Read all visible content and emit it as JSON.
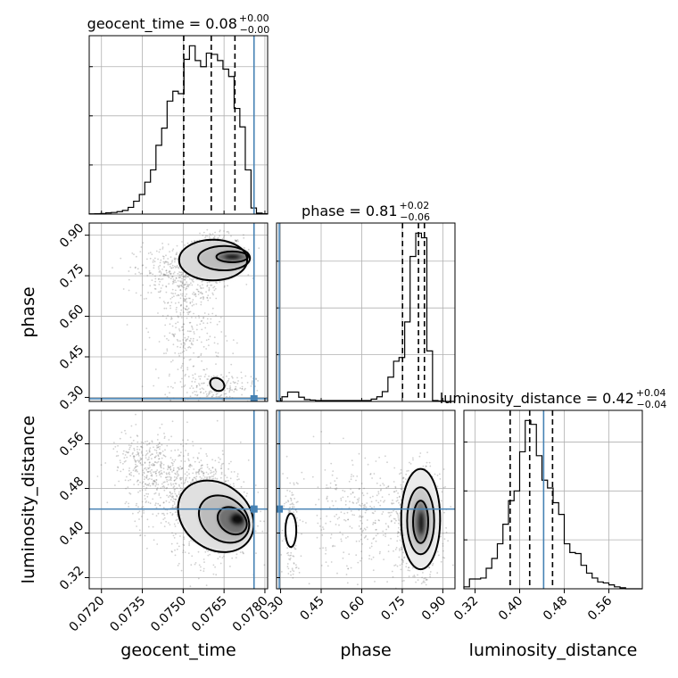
{
  "chart_data": {
    "type": "corner",
    "truth_color": "#4682b4",
    "truths": {
      "geocent_time": 0.0776,
      "phase": 0.295,
      "luminosity_distance": 0.443
    },
    "parameters": [
      {
        "name": "geocent_time",
        "axis_label": "geocent_time",
        "title": "geocent_time = 0.08",
        "title_sup": "+0.00",
        "title_sub": "−0.00",
        "range": [
          0.07155,
          0.0781
        ],
        "ticks": [
          0.072,
          0.0735,
          0.075,
          0.0765,
          0.078
        ],
        "tick_labels": [
          "0.0720",
          "0.0735",
          "0.0750",
          "0.0765",
          "0.0780"
        ],
        "quantiles": [
          0.07502,
          0.07603,
          0.0769
        ],
        "hist_edges": [
          0.07155,
          0.07175,
          0.07195,
          0.07216,
          0.07236,
          0.07257,
          0.07277,
          0.07298,
          0.07318,
          0.07339,
          0.07359,
          0.0738,
          0.074,
          0.07421,
          0.07441,
          0.07462,
          0.07482,
          0.07503,
          0.07523,
          0.07544,
          0.07564,
          0.07585,
          0.07605,
          0.07626,
          0.07646,
          0.07667,
          0.07687,
          0.07708,
          0.07728,
          0.07749,
          0.07769,
          0.0779,
          0.0781
        ],
        "hist_counts": [
          0.2,
          0.3,
          0.5,
          1.0,
          1.3,
          2.0,
          3.0,
          5.5,
          10.5,
          16.0,
          26.0,
          36.0,
          56.0,
          70.0,
          92.0,
          100.0,
          98.0,
          126.0,
          137.0,
          125.0,
          120.0,
          131.0,
          130.0,
          125.0,
          118.0,
          112.0,
          86.0,
          71.0,
          36.0,
          5.0,
          0.8,
          0.3
        ]
      },
      {
        "name": "phase",
        "axis_label": "phase",
        "title": "phase = 0.81",
        "title_sup": "+0.02",
        "title_sub": "−0.06",
        "range": [
          0.285,
          0.945
        ],
        "ticks": [
          0.3,
          0.45,
          0.6,
          0.75,
          0.9
        ],
        "tick_labels": [
          "0.30",
          "0.45",
          "0.60",
          "0.75",
          "0.90"
        ],
        "quantiles": [
          0.751,
          0.81,
          0.832
        ],
        "hist_edges": [
          0.285,
          0.305,
          0.326,
          0.347,
          0.367,
          0.388,
          0.409,
          0.429,
          0.45,
          0.47,
          0.491,
          0.512,
          0.532,
          0.553,
          0.573,
          0.594,
          0.615,
          0.635,
          0.656,
          0.676,
          0.697,
          0.718,
          0.738,
          0.759,
          0.779,
          0.8,
          0.821,
          0.841,
          0.862,
          0.882,
          0.903,
          0.924,
          0.945
        ],
        "hist_counts": [
          0.5,
          5.0,
          10.0,
          10.0,
          4.5,
          2.0,
          1.5,
          1.0,
          1.0,
          1.0,
          1.0,
          1.0,
          1.0,
          1.0,
          1.0,
          1.0,
          1.0,
          2.5,
          5.0,
          10.5,
          26.0,
          43.0,
          47.0,
          85.0,
          155.0,
          180.0,
          175.0,
          54.0,
          1.0,
          0.5,
          0,
          0
        ]
      },
      {
        "name": "luminosity_distance",
        "axis_label": "luminosity_distance",
        "title": "luminosity_distance = 0.42",
        "title_sup": "+0.04",
        "title_sub": "−0.04",
        "range": [
          0.3,
          0.62
        ],
        "ticks": [
          0.32,
          0.4,
          0.48,
          0.56
        ],
        "tick_labels": [
          "0.32",
          "0.40",
          "0.48",
          "0.56"
        ],
        "quantiles": [
          0.383,
          0.418,
          0.459
        ],
        "hist_edges": [
          0.3,
          0.31,
          0.32,
          0.33,
          0.34,
          0.35,
          0.36,
          0.37,
          0.38,
          0.39,
          0.4,
          0.41,
          0.42,
          0.43,
          0.44,
          0.45,
          0.46,
          0.47,
          0.48,
          0.49,
          0.5,
          0.51,
          0.52,
          0.53,
          0.54,
          0.55,
          0.56,
          0.57,
          0.58,
          0.59,
          0.6,
          0.61,
          0.62
        ],
        "hist_counts": [
          2.0,
          10.0,
          10.0,
          11.0,
          21.0,
          31.0,
          46.0,
          66.0,
          90.0,
          100.0,
          140.0,
          172.0,
          168.0,
          136.0,
          111.0,
          103.0,
          88.0,
          76.0,
          46.0,
          37.0,
          36.0,
          24.0,
          16.0,
          11.0,
          7.0,
          6.0,
          4.0,
          2.0,
          1.0,
          0,
          0,
          0
        ]
      }
    ]
  }
}
